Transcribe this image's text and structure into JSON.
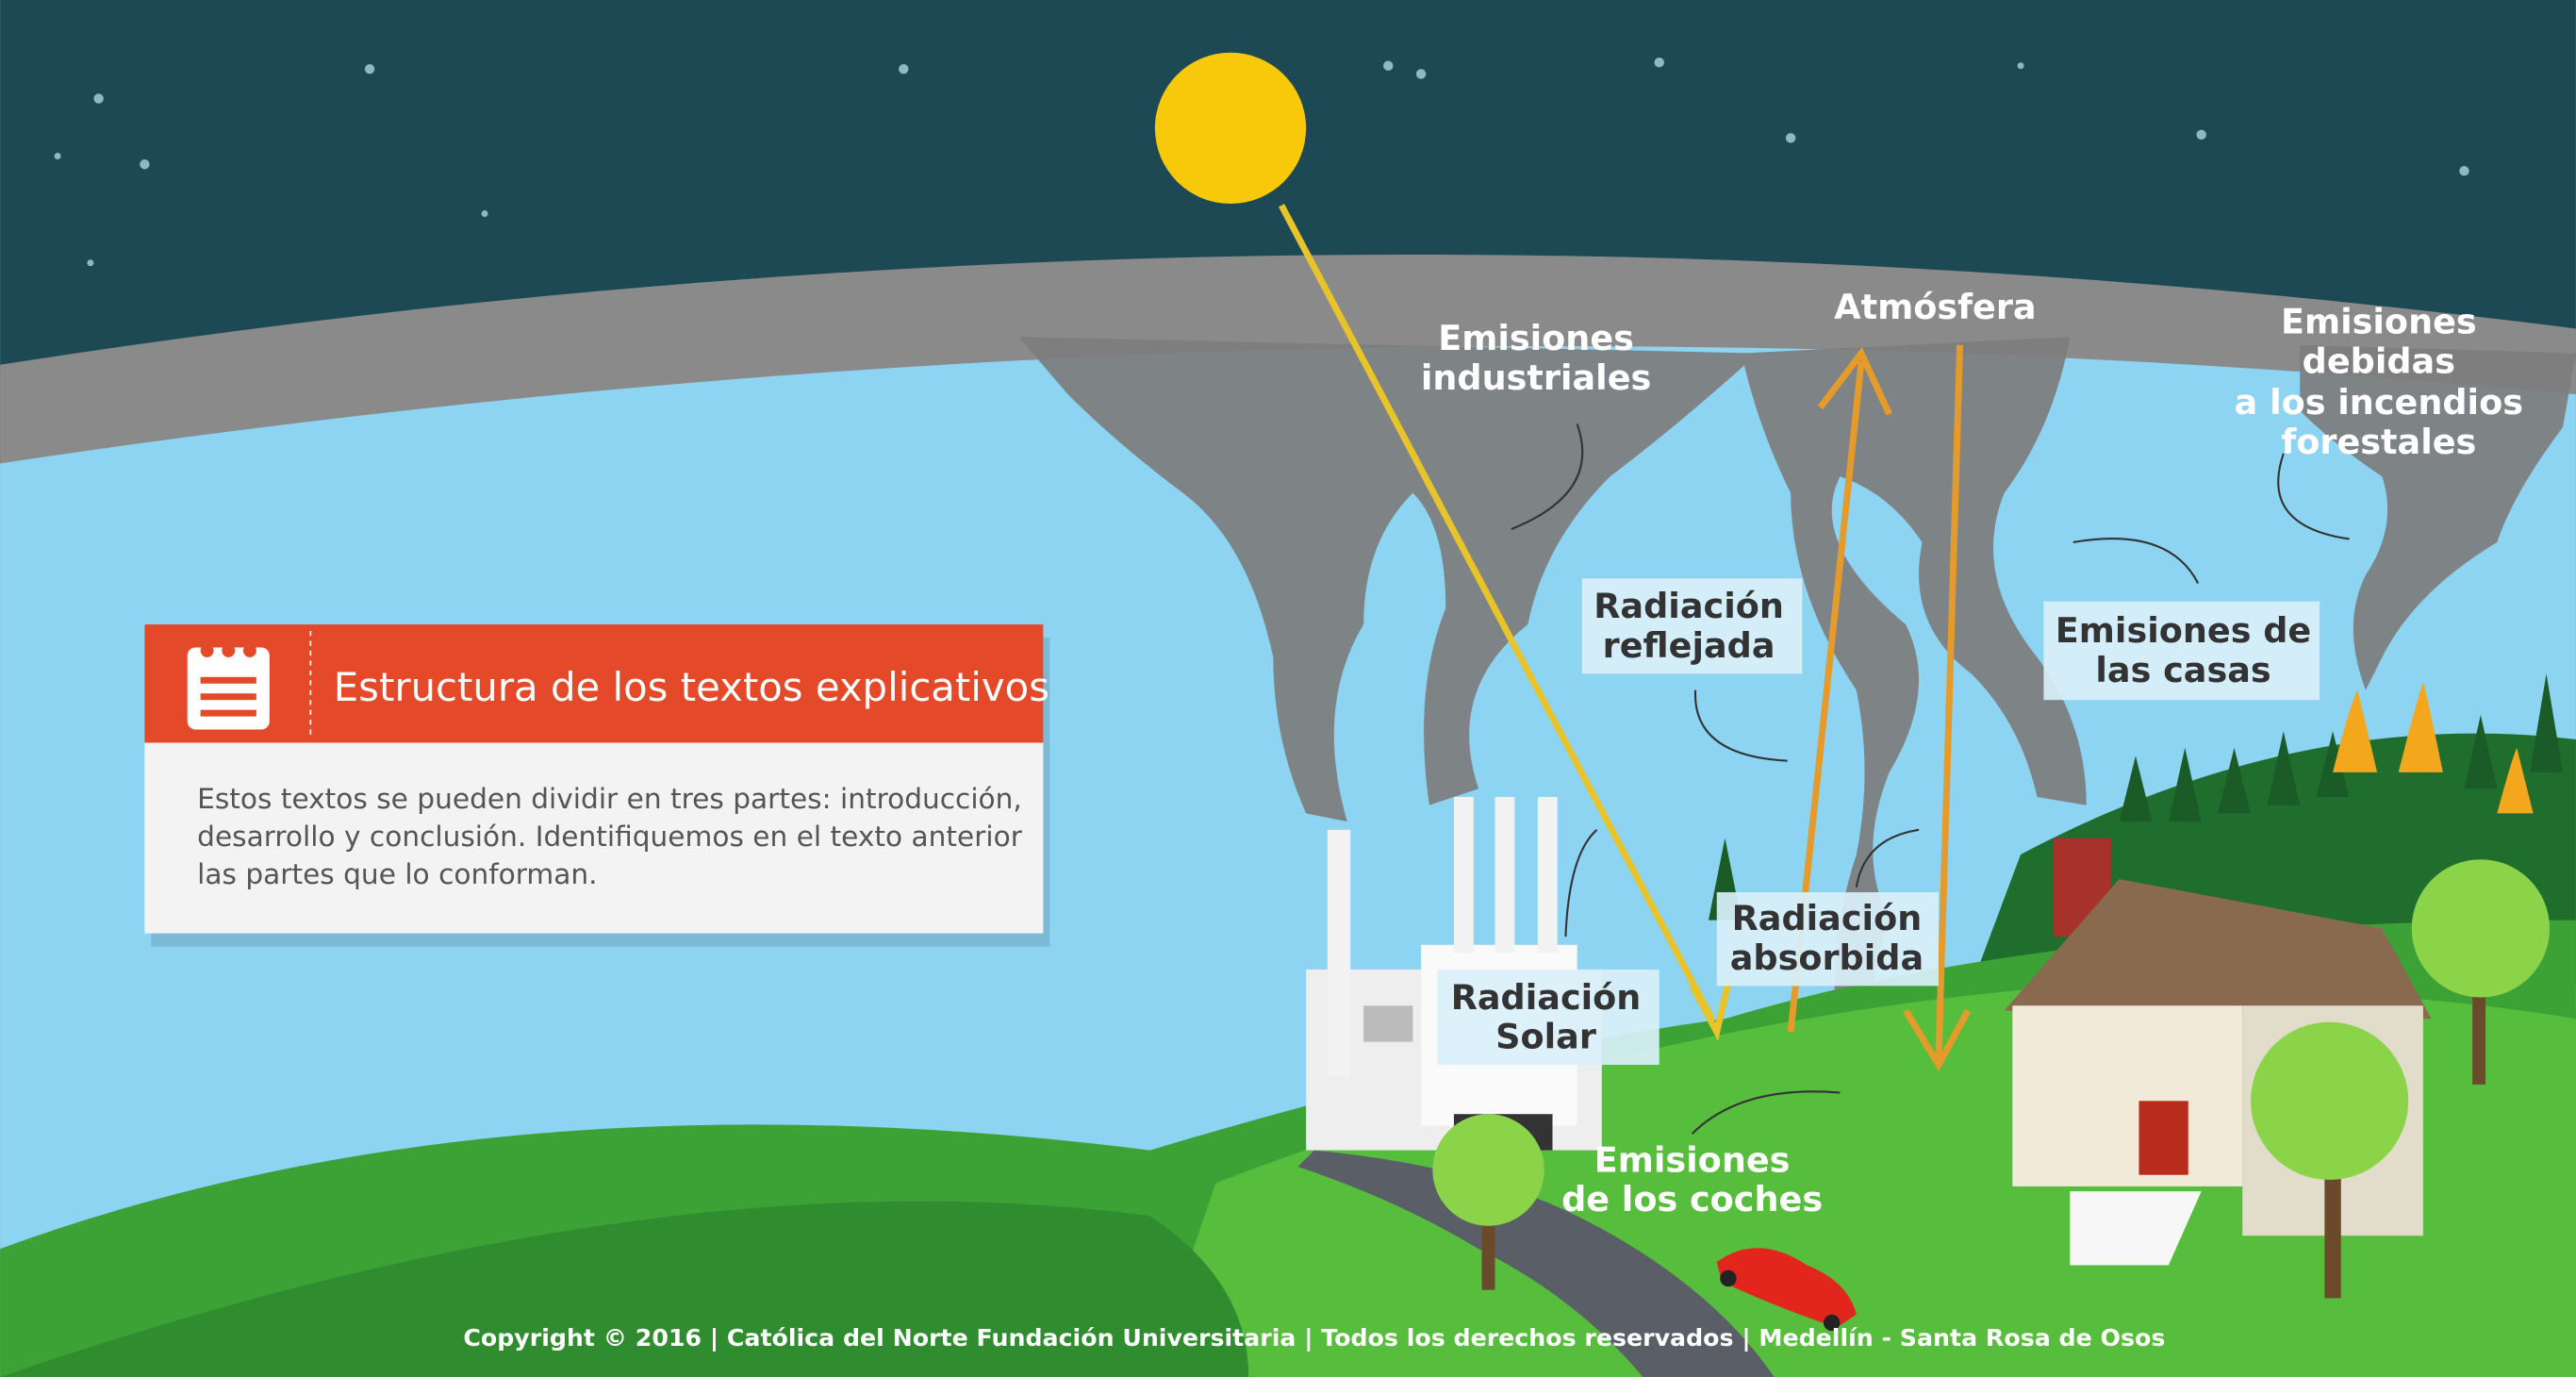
{
  "card": {
    "title": "Estructura de los textos explicativos",
    "body": [
      "Estos textos se pueden dividir en tres partes: introducción,",
      "desarrollo y conclusión. Identifiquemos en el texto anterior",
      "las partes que lo conforman."
    ]
  },
  "labels": {
    "industrial": [
      "Emisiones",
      "industriales"
    ],
    "atmosphere": [
      "Atmósfera"
    ],
    "fires": [
      "Emisiones",
      "debidas",
      "a los incendios",
      "forestales"
    ],
    "reflected": [
      "Radiación",
      "reflejada"
    ],
    "houses": [
      "Emisiones de",
      "las casas"
    ],
    "absorbed": [
      "Radiación",
      "absorbida"
    ],
    "solar": [
      "Radiación",
      "Solar"
    ],
    "cars": [
      "Emisiones",
      "de los coches"
    ]
  },
  "footer": "Copyright © 2016 | Católica del Norte Fundación Universitaria | Todos los derechos reservados | Medellín - Santa Rosa de Osos"
}
